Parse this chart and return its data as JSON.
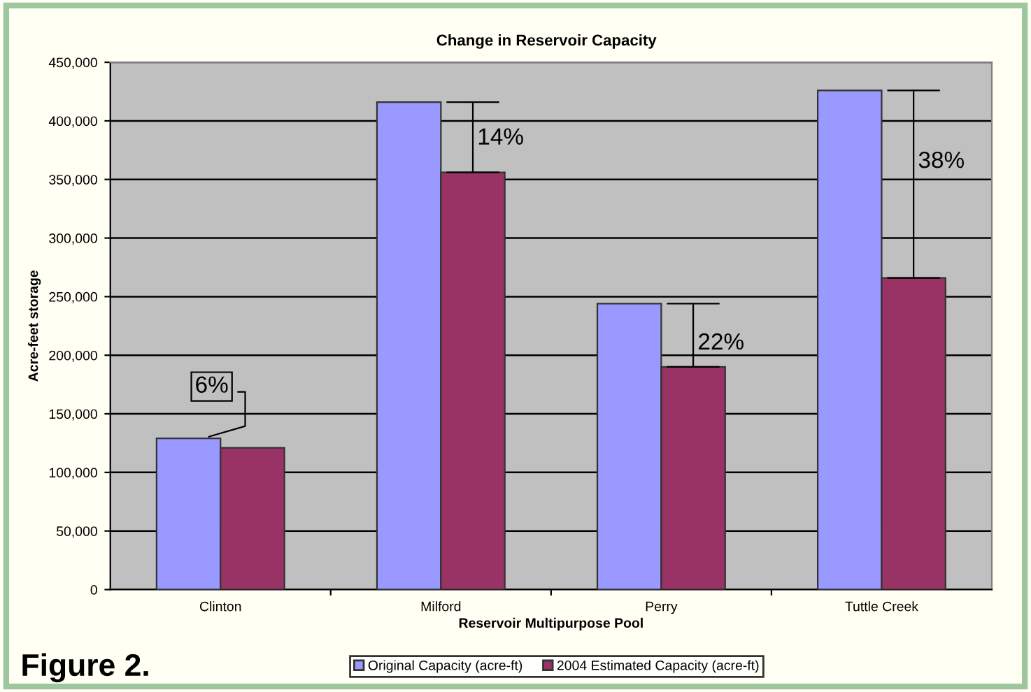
{
  "chart_data": {
    "type": "bar",
    "title": "Change in Reservoir Capacity",
    "xlabel": "Reservoir Multipurpose Pool",
    "ylabel": "Acre-feet storage",
    "categories": [
      "Clinton",
      "Milford",
      "Perry",
      "Tuttle Creek"
    ],
    "series": [
      {
        "name": "Original Capacity (acre-ft)",
        "color": "#9999ff",
        "values": [
          129000,
          416000,
          244000,
          426000
        ]
      },
      {
        "name": "2004 Estimated Capacity (acre-ft)",
        "color": "#993366",
        "values": [
          121000,
          356000,
          190000,
          266000
        ]
      }
    ],
    "ylim": [
      0,
      450000
    ],
    "yticks": [
      {
        "value": 0,
        "label": "0"
      },
      {
        "value": 50000,
        "label": "50,000"
      },
      {
        "value": 100000,
        "label": "100,000"
      },
      {
        "value": 150000,
        "label": "150,000"
      },
      {
        "value": 200000,
        "label": "200,000"
      },
      {
        "value": 250000,
        "label": "250,000"
      },
      {
        "value": 300000,
        "label": "300,000"
      },
      {
        "value": 350000,
        "label": "350,000"
      },
      {
        "value": 400000,
        "label": "400,000"
      },
      {
        "value": 450000,
        "label": "450,000"
      }
    ],
    "grid": "y",
    "legend": "bottom",
    "annotations": [
      "6%",
      {
        "text": "14%",
        "x": "Milford",
        "y": 385000
      },
      {
        "text": "22%",
        "x": "Perry",
        "y": 210000
      },
      {
        "text": "38%",
        "x": "Tuttle Creek",
        "y": 365000
      },
      "Figure 2."
    ]
  }
}
